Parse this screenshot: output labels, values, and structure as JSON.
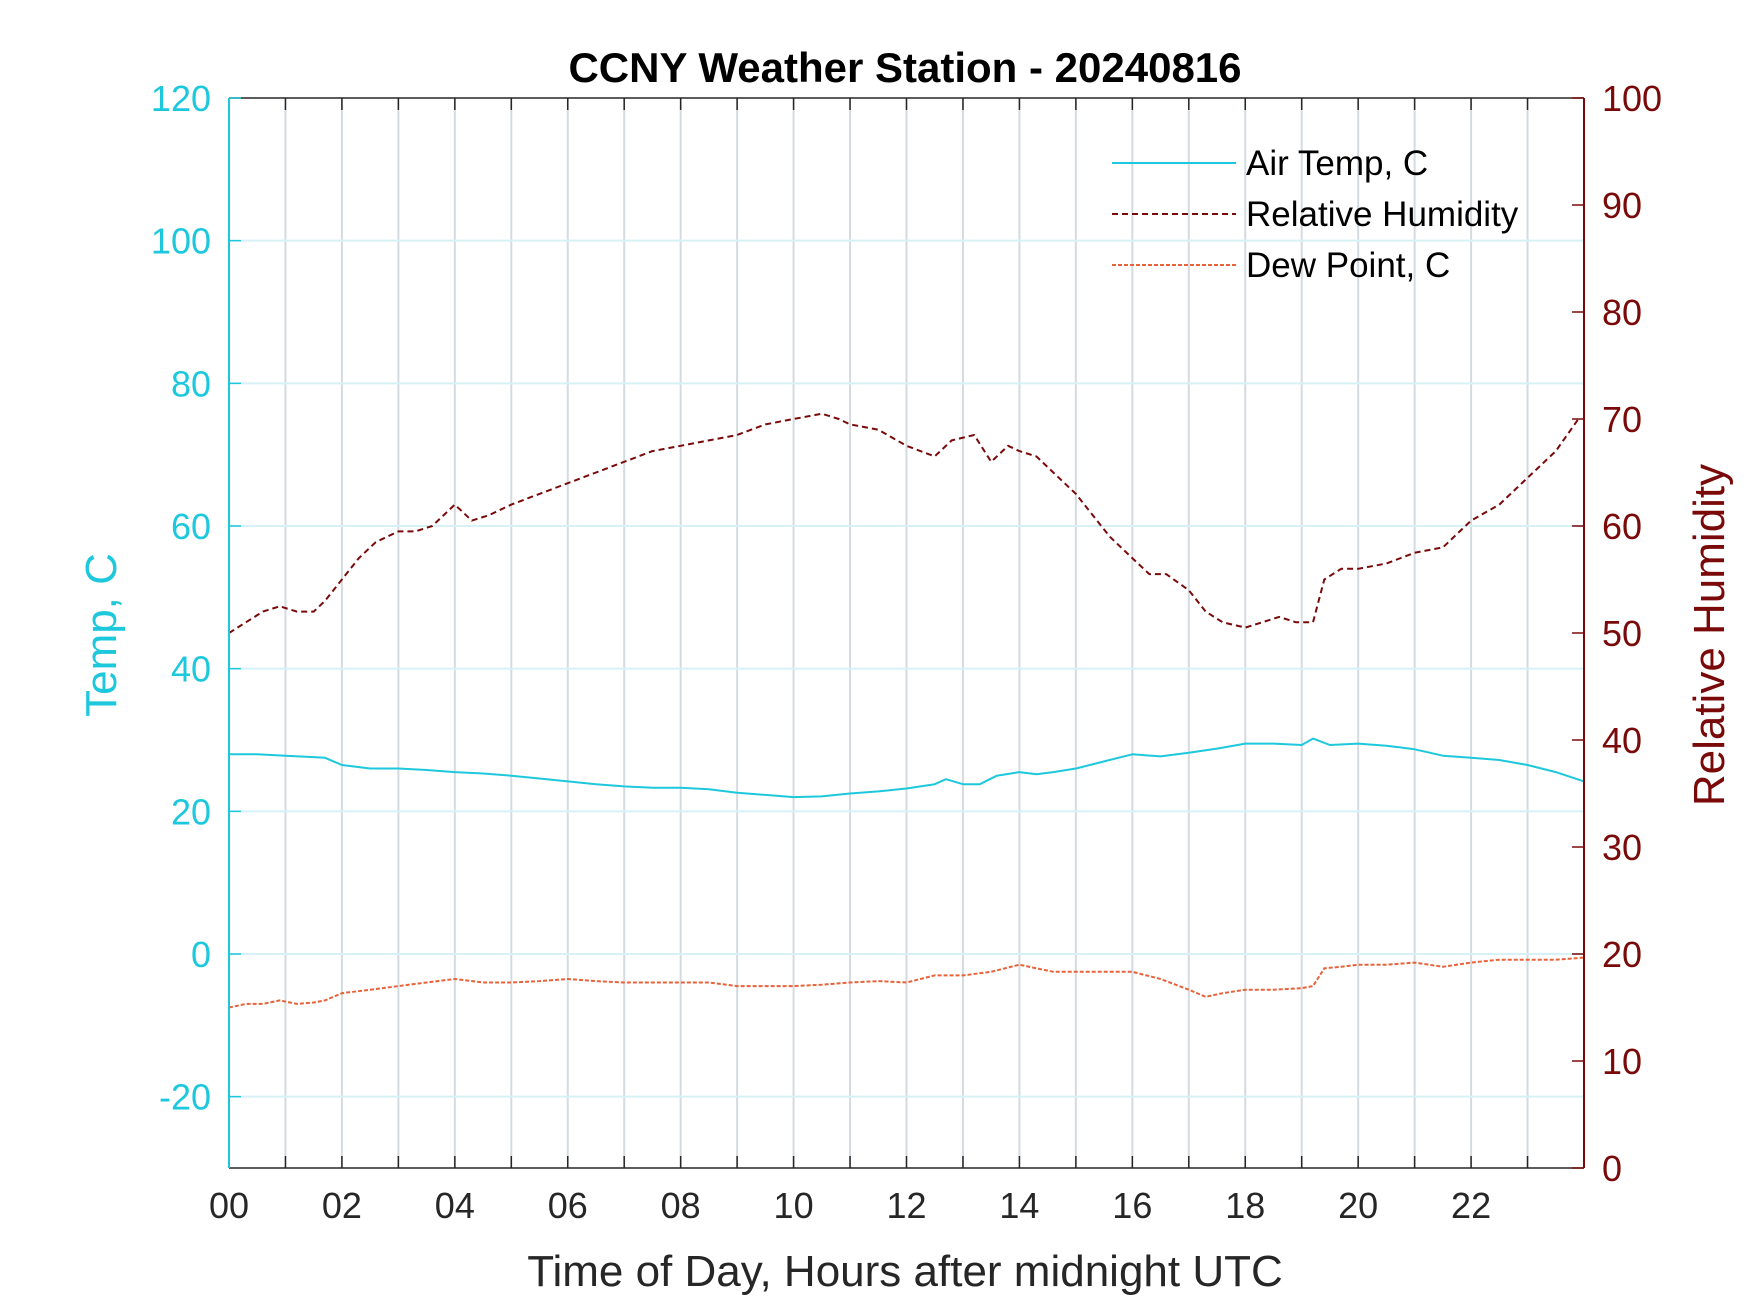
{
  "chart_data": {
    "type": "line",
    "title": "CCNY Weather Station - 20240816",
    "xlabel": "Time of Day, Hours after midnight UTC",
    "ylabel_left": "Temp, C",
    "ylabel_right": "Relative Humidity",
    "xlim": [
      0,
      24
    ],
    "ylim_left": [
      -30,
      120
    ],
    "ylim_right": [
      0,
      100
    ],
    "x_ticks": [
      "00",
      "02",
      "04",
      "06",
      "08",
      "10",
      "12",
      "14",
      "16",
      "18",
      "20",
      "22"
    ],
    "y_ticks_left": [
      "-20",
      "0",
      "20",
      "40",
      "60",
      "80",
      "100",
      "120"
    ],
    "y_ticks_right": [
      "0",
      "10",
      "20",
      "30",
      "40",
      "50",
      "60",
      "70",
      "80",
      "90",
      "100"
    ],
    "grid": true,
    "legend_position": "top-right",
    "colors": {
      "left_axis": "#1ec8dc",
      "right_axis": "#7a0a0a",
      "air_temp": "#1ec8dc",
      "humidity": "#7a0a0a",
      "dew_point": "#e8623a"
    },
    "series": [
      {
        "name": "Air Temp, C",
        "axis": "left",
        "x": [
          0,
          0.5,
          1,
          1.5,
          1.7,
          2,
          2.5,
          3,
          3.5,
          4,
          4.5,
          5,
          5.5,
          6,
          6.5,
          7,
          7.5,
          8,
          8.5,
          9,
          9.5,
          10,
          10.5,
          11,
          11.5,
          12,
          12.5,
          12.7,
          13,
          13.3,
          13.6,
          14,
          14.3,
          14.6,
          15,
          15.5,
          16,
          16.5,
          17,
          17.5,
          18,
          18.5,
          19,
          19.2,
          19.5,
          20,
          20.5,
          21,
          21.5,
          22,
          22.5,
          23,
          23.5,
          24
        ],
        "y": [
          28,
          28,
          27.8,
          27.6,
          27.5,
          26.5,
          26,
          26,
          25.8,
          25.5,
          25.3,
          25,
          24.6,
          24.2,
          23.8,
          23.5,
          23.3,
          23.3,
          23.1,
          22.6,
          22.3,
          22,
          22.1,
          22.5,
          22.8,
          23.2,
          23.8,
          24.5,
          23.8,
          23.8,
          25,
          25.5,
          25.2,
          25.5,
          26,
          27,
          28,
          27.7,
          28.2,
          28.8,
          29.5,
          29.5,
          29.3,
          30.2,
          29.3,
          29.5,
          29.2,
          28.7,
          27.8,
          27.5,
          27.2,
          26.5,
          25.5,
          24.2
        ]
      },
      {
        "name": "Relative Humidity",
        "axis": "right",
        "x": [
          0,
          0.3,
          0.6,
          0.9,
          1.2,
          1.5,
          1.7,
          2,
          2.3,
          2.6,
          3,
          3.3,
          3.6,
          4,
          4.3,
          4.6,
          5,
          5.5,
          6,
          6.5,
          7,
          7.5,
          8,
          8.5,
          9,
          9.5,
          10,
          10.5,
          10.8,
          11,
          11.5,
          12,
          12.5,
          12.8,
          13.2,
          13.5,
          13.8,
          14,
          14.3,
          14.6,
          15,
          15.3,
          15.6,
          16,
          16.3,
          16.6,
          17,
          17.3,
          17.6,
          18,
          18.3,
          18.6,
          18.9,
          19.2,
          19.4,
          19.7,
          20,
          20.5,
          21,
          21.5,
          22,
          22.5,
          23,
          23.5,
          23.9
        ],
        "y": [
          50,
          51,
          52,
          52.5,
          52,
          52,
          53,
          55,
          57,
          58.5,
          59.5,
          59.5,
          60,
          62,
          60.5,
          61,
          62,
          63,
          64,
          65,
          66,
          67,
          67.5,
          68,
          68.5,
          69.5,
          70,
          70.5,
          70,
          69.5,
          69,
          67.5,
          66.5,
          68,
          68.5,
          66,
          67.5,
          67,
          66.5,
          65,
          63,
          61,
          59,
          57,
          55.5,
          55.5,
          54,
          52,
          51,
          50.5,
          51,
          51.5,
          51,
          51,
          55,
          56,
          56,
          56.5,
          57.5,
          58,
          60.5,
          62,
          64.5,
          67,
          70
        ]
      },
      {
        "name": "Dew Point, C",
        "axis": "left",
        "x": [
          0,
          0.3,
          0.6,
          0.9,
          1.2,
          1.5,
          1.7,
          2,
          2.5,
          3,
          3.5,
          4,
          4.5,
          5,
          5.5,
          6,
          6.5,
          7,
          7.5,
          8,
          8.5,
          9,
          9.5,
          10,
          10.5,
          11,
          11.5,
          12,
          12.5,
          13,
          13.5,
          14,
          14.3,
          14.6,
          15,
          15.5,
          16,
          16.5,
          17,
          17.3,
          17.6,
          18,
          18.5,
          19,
          19.2,
          19.4,
          19.7,
          20,
          20.5,
          21,
          21.5,
          22,
          22.5,
          23,
          23.5,
          24
        ],
        "y": [
          -7.5,
          -7,
          -7,
          -6.5,
          -7,
          -6.8,
          -6.5,
          -5.5,
          -5,
          -4.5,
          -4,
          -3.5,
          -4,
          -4,
          -3.8,
          -3.5,
          -3.8,
          -4,
          -4,
          -4,
          -4,
          -4.5,
          -4.5,
          -4.5,
          -4.3,
          -4,
          -3.8,
          -4,
          -3,
          -3,
          -2.5,
          -1.5,
          -2,
          -2.5,
          -2.5,
          -2.5,
          -2.5,
          -3.5,
          -5,
          -6,
          -5.5,
          -5,
          -5,
          -4.8,
          -4.5,
          -2,
          -1.8,
          -1.5,
          -1.5,
          -1.2,
          -1.8,
          -1.2,
          -0.8,
          -0.8,
          -0.8,
          -0.5
        ]
      }
    ]
  }
}
